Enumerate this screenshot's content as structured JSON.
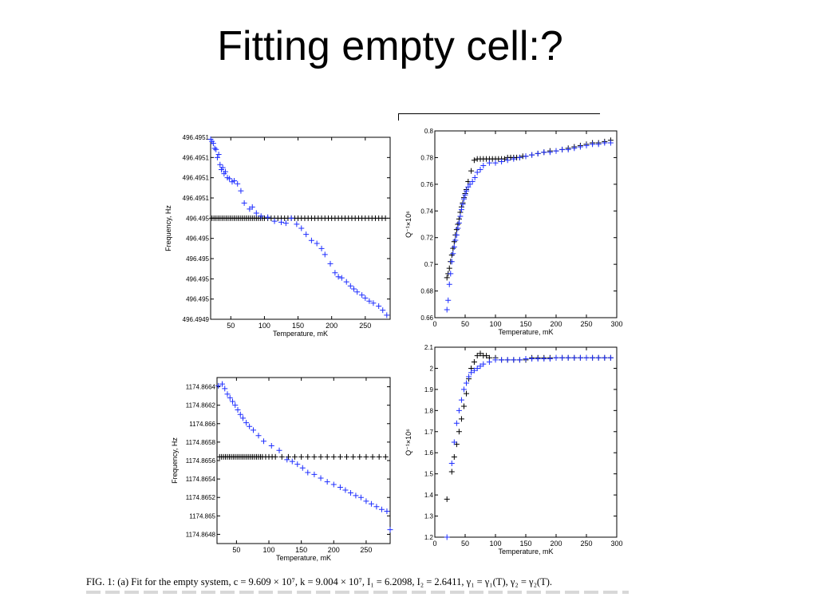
{
  "slide": {
    "title": "Fitting empty cell:?"
  },
  "caption": "FIG. 1:   (a) Fit for the empty system, c = 9.609 × 10⁷, k = 9.004 × 10⁷, I₁ = 6.2098, I₂ = 2.6411, γ₁ = γ₁(T), γ₂ = γ₂(T).",
  "colors": {
    "data": "#1f2fff",
    "fit": "#000000",
    "axis": "#000000"
  },
  "chart_data": [
    {
      "type": "scatter",
      "xlabel": "Temperature, mK",
      "ylabel": "Frequency, Hz",
      "xlim": [
        20,
        287
      ],
      "ylim": [
        0,
        9
      ],
      "xticks": [
        50,
        100,
        150,
        200,
        250
      ],
      "yticks": [
        {
          "v": 9,
          "label": "496.4951"
        },
        {
          "v": 8,
          "label": "496.4951"
        },
        {
          "v": 7,
          "label": "496.4951"
        },
        {
          "v": 6,
          "label": "496.4951"
        },
        {
          "v": 5,
          "label": "496.495"
        },
        {
          "v": 4,
          "label": "496.495"
        },
        {
          "v": 3,
          "label": "496.495"
        },
        {
          "v": 2,
          "label": "496.495"
        },
        {
          "v": 1,
          "label": "496.495"
        },
        {
          "v": 0,
          "label": "496.4949"
        }
      ],
      "series": [
        {
          "marker": "measured",
          "color": "#1f2fff",
          "x": [
            20,
            22,
            24,
            26,
            28,
            30,
            32,
            34,
            36,
            38,
            40,
            42,
            45,
            48,
            52,
            55,
            60,
            65,
            70,
            78,
            82,
            88,
            95,
            105,
            115,
            125,
            132,
            140,
            148,
            155,
            162,
            170,
            178,
            185,
            190,
            198,
            205,
            210,
            215,
            222,
            228,
            233,
            238,
            245,
            250,
            256,
            262,
            270,
            276,
            282
          ],
          "y": [
            8.9,
            8.8,
            8.7,
            8.45,
            8.4,
            8.0,
            8.15,
            7.65,
            7.4,
            7.5,
            7.2,
            7.3,
            7.0,
            6.95,
            6.8,
            6.85,
            6.7,
            6.35,
            5.75,
            5.45,
            5.55,
            5.25,
            5.1,
            5.05,
            4.85,
            4.8,
            4.75,
            5.0,
            4.7,
            4.5,
            4.2,
            3.9,
            3.75,
            3.5,
            3.2,
            2.75,
            2.3,
            2.1,
            2.05,
            1.85,
            1.65,
            1.5,
            1.35,
            1.2,
            1.05,
            0.9,
            0.8,
            0.65,
            0.45,
            0.2
          ]
        },
        {
          "marker": "fit",
          "color": "#000000",
          "x": [
            22,
            25,
            28,
            31,
            34,
            37,
            40,
            43,
            46,
            49,
            52,
            55,
            58,
            61,
            64,
            67,
            70,
            73,
            76,
            79,
            82,
            85,
            88,
            91,
            94,
            97,
            100,
            105,
            110,
            115,
            120,
            125,
            130,
            135,
            140,
            145,
            150,
            155,
            160,
            165,
            170,
            175,
            180,
            185,
            190,
            195,
            200,
            205,
            210,
            215,
            220,
            225,
            230,
            235,
            240,
            245,
            250,
            255,
            260,
            265,
            270,
            275,
            280
          ],
          "y": [
            5,
            5,
            5,
            5,
            5,
            5,
            5,
            5,
            5,
            5,
            5,
            5,
            5,
            5,
            5,
            5,
            5,
            5,
            5,
            5,
            5,
            5,
            5,
            5,
            5,
            5,
            5,
            5,
            5,
            5,
            5,
            5,
            5,
            5,
            5,
            5,
            5,
            5,
            5,
            5,
            5,
            5,
            5,
            5,
            5,
            5,
            5,
            5,
            5,
            5,
            5,
            5,
            5,
            5,
            5,
            5,
            5,
            5,
            5,
            5,
            5,
            5,
            5
          ]
        }
      ]
    },
    {
      "type": "scatter",
      "xlabel": "Temperature, mK",
      "ylabel": "Q⁻¹×10⁶",
      "xlim": [
        0,
        300
      ],
      "ylim": [
        0.66,
        0.8
      ],
      "xticks": [
        0,
        50,
        100,
        150,
        200,
        250,
        300
      ],
      "yticks": [
        {
          "v": 0.8,
          "label": "0.8"
        },
        {
          "v": 0.78,
          "label": "0.78"
        },
        {
          "v": 0.76,
          "label": "0.76"
        },
        {
          "v": 0.74,
          "label": "0.74"
        },
        {
          "v": 0.72,
          "label": "0.72"
        },
        {
          "v": 0.7,
          "label": "0.7"
        },
        {
          "v": 0.68,
          "label": "0.68"
        },
        {
          "v": 0.66,
          "label": "0.66"
        }
      ],
      "series": [
        {
          "marker": "measured",
          "color": "#1f2fff",
          "x": [
            20,
            22,
            24,
            26,
            28,
            30,
            32,
            34,
            36,
            38,
            40,
            42,
            44,
            46,
            48,
            50,
            52,
            55,
            58,
            62,
            66,
            70,
            75,
            80,
            90,
            100,
            110,
            120,
            130,
            140,
            150,
            160,
            170,
            180,
            190,
            200,
            210,
            220,
            230,
            240,
            250,
            260,
            270,
            280,
            290
          ],
          "y": [
            0.666,
            0.673,
            0.685,
            0.693,
            0.702,
            0.708,
            0.713,
            0.718,
            0.722,
            0.727,
            0.731,
            0.736,
            0.741,
            0.745,
            0.749,
            0.752,
            0.755,
            0.758,
            0.76,
            0.762,
            0.765,
            0.769,
            0.771,
            0.774,
            0.776,
            0.776,
            0.777,
            0.778,
            0.779,
            0.78,
            0.781,
            0.782,
            0.783,
            0.784,
            0.784,
            0.785,
            0.786,
            0.786,
            0.787,
            0.788,
            0.789,
            0.79,
            0.79,
            0.791,
            0.791
          ]
        },
        {
          "marker": "fit",
          "color": "#000000",
          "x": [
            20,
            22,
            24,
            26,
            28,
            30,
            32,
            34,
            36,
            38,
            40,
            42,
            44,
            46,
            48,
            50,
            52,
            55,
            60,
            65,
            70,
            75,
            80,
            85,
            90,
            95,
            100,
            105,
            110,
            115,
            120,
            125,
            130,
            135,
            140,
            145,
            150,
            160,
            170,
            180,
            190,
            200,
            210,
            220,
            230,
            240,
            250,
            260,
            270,
            280,
            290
          ],
          "y": [
            0.69,
            0.693,
            0.697,
            0.702,
            0.707,
            0.712,
            0.717,
            0.722,
            0.726,
            0.73,
            0.734,
            0.739,
            0.743,
            0.746,
            0.75,
            0.753,
            0.756,
            0.762,
            0.77,
            0.778,
            0.779,
            0.779,
            0.779,
            0.779,
            0.779,
            0.779,
            0.779,
            0.779,
            0.779,
            0.779,
            0.78,
            0.78,
            0.78,
            0.78,
            0.78,
            0.781,
            0.781,
            0.782,
            0.783,
            0.784,
            0.785,
            0.785,
            0.786,
            0.787,
            0.788,
            0.789,
            0.79,
            0.791,
            0.791,
            0.792,
            0.793
          ]
        }
      ]
    },
    {
      "type": "scatter",
      "xlabel": "Temperature, mK",
      "ylabel": "Frequency, Hz",
      "xlim": [
        20,
        287
      ],
      "ylim": [
        1174.8647,
        1174.8665
      ],
      "xticks": [
        50,
        100,
        150,
        200,
        250
      ],
      "yticks": [
        {
          "v": 1174.8664,
          "label": "1174.8664"
        },
        {
          "v": 1174.8662,
          "label": "1174.8662"
        },
        {
          "v": 1174.866,
          "label": "1174.866"
        },
        {
          "v": 1174.8658,
          "label": "1174.8658"
        },
        {
          "v": 1174.8656,
          "label": "1174.8656"
        },
        {
          "v": 1174.8654,
          "label": "1174.8654"
        },
        {
          "v": 1174.8652,
          "label": "1174.8652"
        },
        {
          "v": 1174.865,
          "label": "1174.865"
        },
        {
          "v": 1174.8648,
          "label": "1174.8648"
        }
      ],
      "series": [
        {
          "marker": "measured",
          "color": "#1f2fff",
          "x": [
            22,
            28,
            32,
            36,
            40,
            44,
            48,
            52,
            56,
            60,
            65,
            70,
            76,
            84,
            92,
            104,
            116,
            128,
            136,
            144,
            152,
            160,
            170,
            180,
            190,
            200,
            210,
            218,
            226,
            234,
            242,
            250,
            258,
            266,
            274,
            282,
            287
          ],
          "y": [
            1174.86641,
            1174.86643,
            1174.86638,
            1174.86632,
            1174.86628,
            1174.86624,
            1174.8662,
            1174.86615,
            1174.8661,
            1174.86606,
            1174.86601,
            1174.86597,
            1174.86593,
            1174.86587,
            1174.86581,
            1174.86576,
            1174.86571,
            1174.86561,
            1174.86559,
            1174.86556,
            1174.86552,
            1174.86547,
            1174.86545,
            1174.86541,
            1174.86537,
            1174.86534,
            1174.86531,
            1174.86528,
            1174.86525,
            1174.86522,
            1174.8652,
            1174.86516,
            1174.86513,
            1174.8651,
            1174.86507,
            1174.86505,
            1174.86485
          ]
        },
        {
          "marker": "fit",
          "color": "#000000",
          "x": [
            24,
            27,
            30,
            33,
            36,
            39,
            42,
            45,
            48,
            51,
            54,
            57,
            60,
            63,
            66,
            69,
            72,
            75,
            78,
            81,
            84,
            87,
            90,
            95,
            100,
            105,
            110,
            120,
            130,
            140,
            150,
            160,
            170,
            180,
            190,
            200,
            210,
            220,
            230,
            240,
            250,
            260,
            270,
            280
          ],
          "y": [
            1174.86564,
            1174.86564,
            1174.86564,
            1174.86564,
            1174.86564,
            1174.86564,
            1174.86564,
            1174.86564,
            1174.86564,
            1174.86564,
            1174.86564,
            1174.86564,
            1174.86564,
            1174.86564,
            1174.86564,
            1174.86564,
            1174.86564,
            1174.86564,
            1174.86564,
            1174.86564,
            1174.86564,
            1174.86564,
            1174.86564,
            1174.86564,
            1174.86564,
            1174.86564,
            1174.86564,
            1174.86564,
            1174.86564,
            1174.86564,
            1174.86564,
            1174.86564,
            1174.86564,
            1174.86564,
            1174.86564,
            1174.86564,
            1174.86564,
            1174.86564,
            1174.86564,
            1174.86564,
            1174.86564,
            1174.86564,
            1174.86564,
            1174.86564
          ]
        }
      ]
    },
    {
      "type": "scatter",
      "xlabel": "Temperature, mK",
      "ylabel": "Q⁻¹×10⁶",
      "xlim": [
        0,
        300
      ],
      "ylim": [
        1.2,
        2.1
      ],
      "xticks": [
        0,
        50,
        100,
        150,
        200,
        250,
        300
      ],
      "yticks": [
        {
          "v": 2.1,
          "label": "2.1"
        },
        {
          "v": 2.0,
          "label": "2"
        },
        {
          "v": 1.9,
          "label": "1.9"
        },
        {
          "v": 1.8,
          "label": "1.8"
        },
        {
          "v": 1.7,
          "label": "1.7"
        },
        {
          "v": 1.6,
          "label": "1.6"
        },
        {
          "v": 1.5,
          "label": "1.5"
        },
        {
          "v": 1.4,
          "label": "1.4"
        },
        {
          "v": 1.3,
          "label": "1.3"
        },
        {
          "v": 1.2,
          "label": "1.2"
        }
      ],
      "series": [
        {
          "marker": "measured",
          "color": "#1f2fff",
          "x": [
            20,
            28,
            32,
            36,
            40,
            44,
            48,
            52,
            56,
            60,
            65,
            70,
            75,
            80,
            90,
            100,
            110,
            120,
            130,
            140,
            150,
            160,
            170,
            180,
            190,
            200,
            210,
            220,
            230,
            240,
            250,
            260,
            270,
            280,
            290
          ],
          "y": [
            1.2,
            1.55,
            1.65,
            1.74,
            1.8,
            1.85,
            1.9,
            1.93,
            1.96,
            1.98,
            1.99,
            2.0,
            2.01,
            2.02,
            2.03,
            2.04,
            2.04,
            2.04,
            2.04,
            2.04,
            2.045,
            2.045,
            2.045,
            2.045,
            2.045,
            2.05,
            2.05,
            2.05,
            2.05,
            2.05,
            2.05,
            2.05,
            2.05,
            2.05,
            2.05
          ]
        },
        {
          "marker": "fit",
          "color": "#000000",
          "x": [
            20,
            28,
            32,
            36,
            40,
            44,
            48,
            52,
            56,
            60,
            65,
            70,
            75,
            80,
            85,
            90,
            100,
            110,
            120,
            130,
            140,
            150,
            160,
            170,
            180,
            190,
            200,
            210,
            220,
            230,
            240,
            250,
            260,
            270,
            280,
            290
          ],
          "y": [
            1.38,
            1.51,
            1.58,
            1.64,
            1.7,
            1.76,
            1.82,
            1.88,
            1.95,
            2.0,
            2.03,
            2.06,
            2.07,
            2.06,
            2.06,
            2.05,
            2.05,
            2.04,
            2.04,
            2.04,
            2.04,
            2.04,
            2.05,
            2.05,
            2.05,
            2.05,
            2.05,
            2.05,
            2.05,
            2.05,
            2.05,
            2.05,
            2.05,
            2.05,
            2.05,
            2.05
          ]
        }
      ]
    }
  ]
}
